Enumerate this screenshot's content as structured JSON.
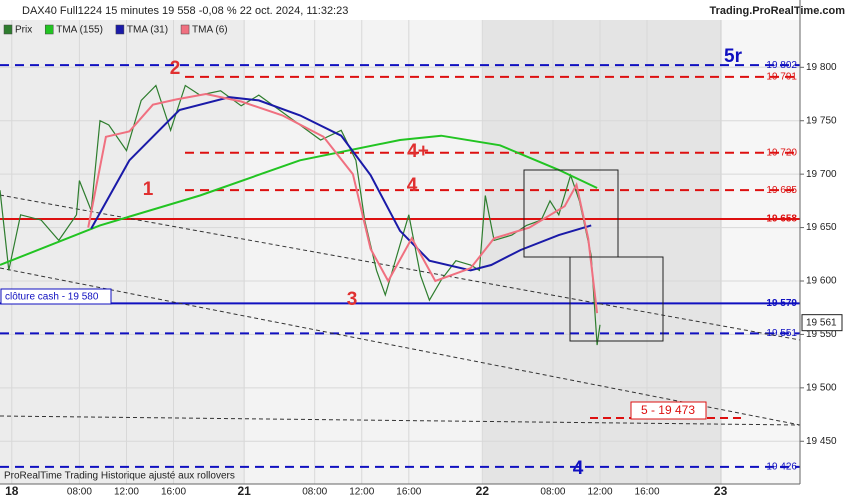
{
  "chart_data": {
    "type": "line",
    "title": "DAX40 Full1224 15 minutes 19 558 -0,08 % 22 oct. 2024, 11:32:23",
    "source": "Trading.ProRealTime.com",
    "footer": "ProRealTime Trading Historique ajusté aux rollovers",
    "ylim": [
      19410,
      19863
    ],
    "yticks": [
      {
        "value": 19450,
        "label": "19 450"
      },
      {
        "value": 19500,
        "label": "19 500"
      },
      {
        "value": 19550,
        "label": "19 550"
      },
      {
        "value": 19600,
        "label": "19 600"
      },
      {
        "value": 19650,
        "label": "19 650"
      },
      {
        "value": 19700,
        "label": "19 700"
      },
      {
        "value": 19750,
        "label": "19 750"
      },
      {
        "value": 19800,
        "label": "19 800"
      }
    ],
    "xlim": [
      0,
      272
    ],
    "xticks": [
      {
        "value": 4,
        "label": "18"
      },
      {
        "value": 27,
        "label": "08:00"
      },
      {
        "value": 43,
        "label": "12:00"
      },
      {
        "value": 59,
        "label": "16:00"
      },
      {
        "value": 83,
        "label": "21"
      },
      {
        "value": 107,
        "label": "08:00"
      },
      {
        "value": 123,
        "label": "12:00"
      },
      {
        "value": 139,
        "label": "16:00"
      },
      {
        "value": 164,
        "label": "22"
      },
      {
        "value": 188,
        "label": "08:00"
      },
      {
        "value": 204,
        "label": "12:00"
      },
      {
        "value": 220,
        "label": "16:00"
      },
      {
        "value": 245,
        "label": "23"
      }
    ],
    "series": [
      {
        "name": "Prix",
        "color": "#2e7d2e",
        "x": [
          0,
          3,
          7,
          14,
          20,
          26,
          27,
          31,
          34,
          37,
          43,
          48,
          53,
          58,
          63,
          68,
          75,
          82,
          88,
          95,
          102,
          109,
          116,
          121,
          124,
          128,
          131,
          134,
          139,
          143,
          146,
          150,
          155,
          160,
          163,
          165,
          168,
          174,
          179,
          184,
          187,
          190,
          194,
          197,
          201,
          202,
          203,
          204
        ],
        "values": [
          19685,
          19610,
          19662,
          19657,
          19638,
          19662,
          19694,
          19666,
          19750,
          19746,
          19722,
          19769,
          19783,
          19741,
          19783,
          19774,
          19778,
          19764,
          19774,
          19760,
          19746,
          19732,
          19741,
          19713,
          19657,
          19610,
          19587,
          19615,
          19662,
          19605,
          19582,
          19601,
          19619,
          19615,
          19610,
          19680,
          19638,
          19643,
          19652,
          19657,
          19675,
          19662,
          19699,
          19675,
          19624,
          19582,
          19540,
          19559
        ]
      },
      {
        "name": "TMA (155)",
        "color": "#22c422",
        "x": [
          0,
          34,
          68,
          102,
          136,
          150,
          170,
          190,
          203
        ],
        "values": [
          19615,
          19652,
          19680,
          19713,
          19732,
          19736,
          19727,
          19704,
          19687
        ]
      },
      {
        "name": "TMA (31)",
        "color": "#1a1aa8",
        "x": [
          31,
          44,
          61,
          78,
          88,
          102,
          116,
          126,
          136,
          146,
          160,
          167,
          177,
          190,
          201
        ],
        "values": [
          19649,
          19713,
          19760,
          19772,
          19769,
          19755,
          19736,
          19699,
          19647,
          19619,
          19610,
          19615,
          19629,
          19643,
          19652
        ]
      },
      {
        "name": "TMA (6)",
        "color": "#f07080",
        "x": [
          30,
          36,
          44,
          52,
          60,
          70,
          82,
          96,
          110,
          120,
          126,
          132,
          140,
          148,
          160,
          168,
          180,
          192,
          196,
          200,
          203
        ],
        "values": [
          19650,
          19735,
          19740,
          19765,
          19770,
          19775,
          19768,
          19755,
          19735,
          19700,
          19630,
          19600,
          19640,
          19600,
          19612,
          19640,
          19650,
          19670,
          19690,
          19640,
          19570
        ]
      }
    ],
    "levels": [
      {
        "value": 19802,
        "label": "19 802",
        "color": "#1010c0",
        "dashed": true
      },
      {
        "value": 19791,
        "label": "19 791",
        "color": "#dd1010",
        "dashed": true
      },
      {
        "value": 19720,
        "label": "19 720",
        "color": "#dd1010",
        "dashed": true
      },
      {
        "value": 19685,
        "label": "19 685",
        "color": "#dd1010",
        "dashed": true
      },
      {
        "value": 19658,
        "label": "19 658",
        "color": "#dd1010",
        "dashed": false
      },
      {
        "value": 19579,
        "label": "19 579",
        "color": "#1010c0",
        "dashed": false
      },
      {
        "value": 19551,
        "label": "19 551",
        "color": "#1010c0",
        "dashed": true
      },
      {
        "value": 19426,
        "label": "19 426",
        "color": "#1010c0",
        "dashed": true
      }
    ],
    "last_price": {
      "value": 19561,
      "label": "19 561"
    },
    "annotations": [
      "1",
      "2",
      "3",
      "4",
      "4+",
      "5r",
      "4",
      "5 -  19 473",
      "clôture cash -  19 580"
    ]
  }
}
